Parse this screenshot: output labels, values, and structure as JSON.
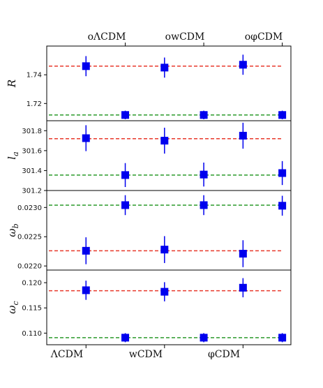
{
  "chart_data": {
    "type": "scatter",
    "models_bottom": [
      "ΛCDM",
      "wCDM",
      "φCDM"
    ],
    "models_top": [
      "oΛCDM",
      "owCDM",
      "oφCDM"
    ],
    "colors": {
      "marker": "#0000ee",
      "flat_line": "#e8382b",
      "open_line": "#2b9a2b"
    },
    "panels": [
      {
        "ylabel": "R",
        "ylim": [
          1.708,
          1.76
        ],
        "yticks": [
          1.72,
          1.74
        ],
        "yticklabels": [
          "1.72",
          "1.74"
        ],
        "flat_line": 1.746,
        "open_line": 1.712,
        "points": [
          {
            "x": 1,
            "y": 1.746,
            "err": 0.007
          },
          {
            "x": 1.5,
            "y": 1.712,
            "err": 0.003
          },
          {
            "x": 2,
            "y": 1.745,
            "err": 0.007
          },
          {
            "x": 2.5,
            "y": 1.712,
            "err": 0.003
          },
          {
            "x": 3,
            "y": 1.747,
            "err": 0.007
          },
          {
            "x": 3.5,
            "y": 1.712,
            "err": 0.003
          }
        ]
      },
      {
        "ylabel": "l_a",
        "ylim": [
          301.2,
          301.9
        ],
        "yticks": [
          301.2,
          301.4,
          301.6,
          301.8
        ],
        "yticklabels": [
          "301.2",
          "301.4",
          "301.6",
          "301.8"
        ],
        "flat_line": 301.72,
        "open_line": 301.355,
        "points": [
          {
            "x": 1,
            "y": 301.725,
            "err": 0.13
          },
          {
            "x": 1.5,
            "y": 301.355,
            "err": 0.12
          },
          {
            "x": 2,
            "y": 301.7,
            "err": 0.13
          },
          {
            "x": 2.5,
            "y": 301.36,
            "err": 0.12
          },
          {
            "x": 3,
            "y": 301.75,
            "err": 0.13
          },
          {
            "x": 3.5,
            "y": 301.375,
            "err": 0.12
          }
        ]
      },
      {
        "ylabel": "ω_b",
        "ylim": [
          0.02193,
          0.02329
        ],
        "yticks": [
          0.022,
          0.0225,
          0.023
        ],
        "yticklabels": [
          "0.0220",
          "0.0225",
          "0.0230"
        ],
        "flat_line": 0.02226,
        "open_line": 0.02304,
        "points": [
          {
            "x": 1,
            "y": 0.02226,
            "err": 0.00023
          },
          {
            "x": 1.5,
            "y": 0.02304,
            "err": 0.00017
          },
          {
            "x": 2,
            "y": 0.02228,
            "err": 0.00023
          },
          {
            "x": 2.5,
            "y": 0.02304,
            "err": 0.00017
          },
          {
            "x": 3,
            "y": 0.02221,
            "err": 0.00023
          },
          {
            "x": 3.5,
            "y": 0.02303,
            "err": 0.00017
          }
        ]
      },
      {
        "ylabel": "ω_c",
        "ylim": [
          0.1077,
          0.1225
        ],
        "yticks": [
          0.11,
          0.115,
          0.12
        ],
        "yticklabels": [
          "0.110",
          "0.115",
          "0.120"
        ],
        "flat_line": 0.1184,
        "open_line": 0.1091,
        "points": [
          {
            "x": 1,
            "y": 0.1185,
            "err": 0.0019
          },
          {
            "x": 1.5,
            "y": 0.1091,
            "err": 0.0009
          },
          {
            "x": 2,
            "y": 0.1182,
            "err": 0.0019
          },
          {
            "x": 2.5,
            "y": 0.1091,
            "err": 0.0009
          },
          {
            "x": 3,
            "y": 0.119,
            "err": 0.0019
          },
          {
            "x": 3.5,
            "y": 0.1091,
            "err": 0.0009
          }
        ]
      }
    ]
  }
}
